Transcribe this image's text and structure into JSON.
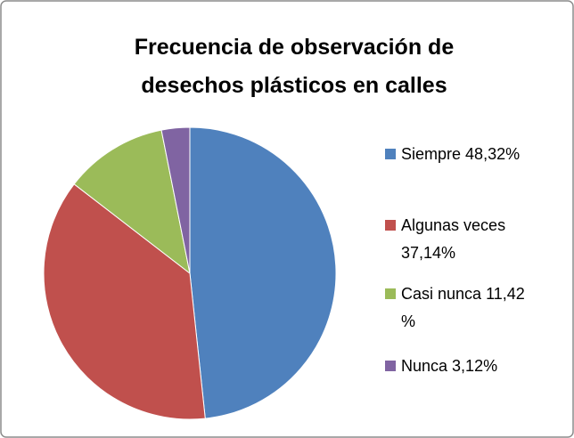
{
  "chart_data": {
    "type": "pie",
    "title": "Frecuencia de observación de desechos plásticos en calles",
    "categories": [
      "Siempre",
      "Algunas veces",
      "Casi nunca",
      "Nunca"
    ],
    "values": [
      48.32,
      37.14,
      11.42,
      3.12
    ],
    "value_labels": [
      "48,32%",
      "37,14%",
      "11,42 %",
      "3,12%"
    ],
    "colors": [
      "#4f81bd",
      "#c0504d",
      "#9bbb59",
      "#8064a2"
    ],
    "legend": "right"
  }
}
